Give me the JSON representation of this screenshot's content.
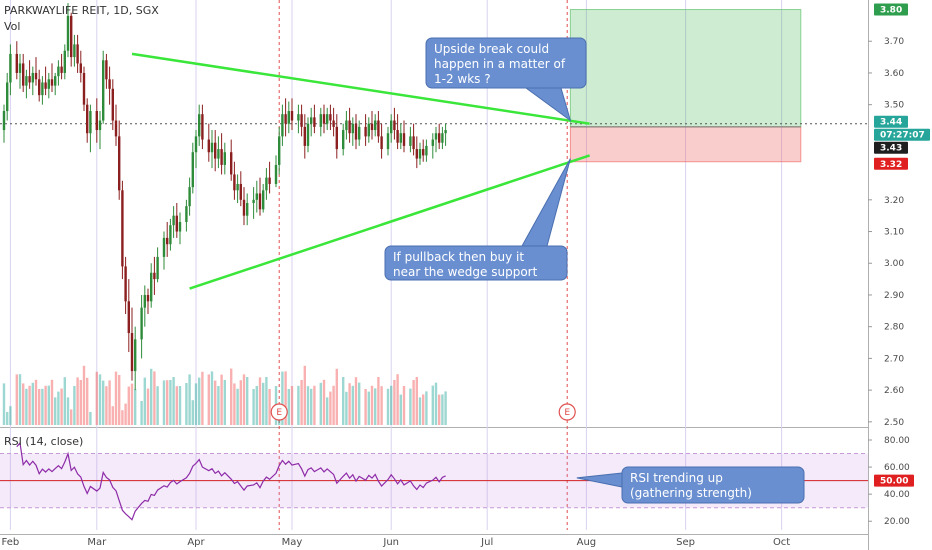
{
  "header": {
    "symbol": "PARKWAYLIFE REIT, 1D, SGX",
    "volume_label": "Vol",
    "rsi_label": "RSI (14, close)"
  },
  "price_axis": {
    "ticks": [
      "3.70",
      "3.60",
      "3.50",
      "3.20",
      "3.10",
      "3.00",
      "2.90",
      "2.80",
      "2.70",
      "2.60",
      "2.50"
    ],
    "tick_values": [
      3.7,
      3.6,
      3.5,
      3.2,
      3.1,
      3.0,
      2.9,
      2.8,
      2.7,
      2.6,
      2.5
    ],
    "range": [
      2.49,
      3.83
    ]
  },
  "rsi_axis": {
    "ticks": [
      "80.00",
      "60.00",
      "40.00",
      "20.00"
    ],
    "tick_values": [
      80,
      60,
      40,
      20
    ],
    "range": [
      15,
      80
    ],
    "upper_band": 70,
    "lower_band": 30
  },
  "months": [
    {
      "label": "Feb",
      "day": 2
    },
    {
      "label": "Mar",
      "day": 29
    },
    {
      "label": "Apr",
      "day": 60
    },
    {
      "label": "May",
      "day": 90
    },
    {
      "label": "Jun",
      "day": 121
    },
    {
      "label": "Jul",
      "day": 151
    },
    {
      "label": "Aug",
      "day": 182
    },
    {
      "label": "Sep",
      "day": 213
    },
    {
      "label": "Oct",
      "day": 243
    }
  ],
  "tags": {
    "target": {
      "text": "3.80",
      "value": 3.8,
      "color": "#2e9e4e"
    },
    "last": {
      "text": "3.44",
      "value": 3.44,
      "color": "#26a69a"
    },
    "countdown": {
      "text": "07:27:07",
      "color": "#26a69a"
    },
    "close": {
      "text": "3.43",
      "value": 3.43,
      "color": "#1e1e1e"
    },
    "stop": {
      "text": "3.32",
      "value": 3.32,
      "color": "#e02020"
    },
    "rsi": {
      "text": "50.00",
      "value": 50,
      "color": "#e02020"
    }
  },
  "position": {
    "entry": 3.43,
    "target": 3.8,
    "stop": 3.32,
    "start_day": 177,
    "end_day": 249
  },
  "wedge": {
    "upper": {
      "from": {
        "day": 40,
        "price": 3.66
      },
      "to": {
        "day": 183,
        "price": 3.44
      }
    },
    "lower": {
      "from": {
        "day": 58,
        "price": 2.92
      },
      "to": {
        "day": 183,
        "price": 3.34
      }
    },
    "color": "#39e639"
  },
  "events": [
    {
      "day": 86,
      "label": "E"
    },
    {
      "day": 176,
      "label": "E"
    }
  ],
  "earnings_lines": [
    86,
    176
  ],
  "annotations": [
    {
      "name": "upside-break-note",
      "lines": [
        "Upside break could",
        "happen in a matter of",
        "1-2 wks ?"
      ],
      "pointer": {
        "day": 177,
        "price": 3.45
      }
    },
    {
      "name": "pullback-note",
      "lines": [
        "If pullback then buy it",
        "near the wedge support"
      ],
      "pointer": {
        "day": 177,
        "price": 3.33
      }
    },
    {
      "name": "rsi-note",
      "lines": [
        "RSI trending up",
        "(gathering strength)"
      ],
      "pointer": {
        "day": 179,
        "rsi": 52
      }
    }
  ],
  "chart_data": {
    "type": "candlestick",
    "title": "PARKWAYLIFE REIT, 1D, SGX",
    "ylim": [
      2.49,
      3.83
    ],
    "candles": [
      {
        "d": 0,
        "o": 3.42,
        "h": 3.5,
        "l": 3.38,
        "c": 3.48
      },
      {
        "d": 1,
        "o": 3.48,
        "h": 3.6,
        "l": 3.45,
        "c": 3.57
      },
      {
        "d": 2,
        "o": 3.57,
        "h": 3.69,
        "l": 3.53,
        "c": 3.66
      },
      {
        "d": 4,
        "o": 3.66,
        "h": 3.7,
        "l": 3.58,
        "c": 3.6
      },
      {
        "d": 5,
        "o": 3.6,
        "h": 3.66,
        "l": 3.55,
        "c": 3.63
      },
      {
        "d": 6,
        "o": 3.63,
        "h": 3.66,
        "l": 3.54,
        "c": 3.56
      },
      {
        "d": 7,
        "o": 3.56,
        "h": 3.61,
        "l": 3.52,
        "c": 3.59
      },
      {
        "d": 8,
        "o": 3.59,
        "h": 3.64,
        "l": 3.55,
        "c": 3.57
      },
      {
        "d": 9,
        "o": 3.57,
        "h": 3.62,
        "l": 3.53,
        "c": 3.6
      },
      {
        "d": 10,
        "o": 3.6,
        "h": 3.65,
        "l": 3.56,
        "c": 3.58
      },
      {
        "d": 11,
        "o": 3.58,
        "h": 3.61,
        "l": 3.51,
        "c": 3.53
      },
      {
        "d": 12,
        "o": 3.53,
        "h": 3.59,
        "l": 3.5,
        "c": 3.57
      },
      {
        "d": 13,
        "o": 3.57,
        "h": 3.62,
        "l": 3.53,
        "c": 3.55
      },
      {
        "d": 14,
        "o": 3.55,
        "h": 3.6,
        "l": 3.52,
        "c": 3.58
      },
      {
        "d": 15,
        "o": 3.58,
        "h": 3.63,
        "l": 3.54,
        "c": 3.56
      },
      {
        "d": 16,
        "o": 3.56,
        "h": 3.6,
        "l": 3.53,
        "c": 3.59
      },
      {
        "d": 17,
        "o": 3.59,
        "h": 3.64,
        "l": 3.56,
        "c": 3.62
      },
      {
        "d": 18,
        "o": 3.62,
        "h": 3.66,
        "l": 3.58,
        "c": 3.6
      },
      {
        "d": 19,
        "o": 3.6,
        "h": 3.69,
        "l": 3.58,
        "c": 3.67
      },
      {
        "d": 20,
        "o": 3.67,
        "h": 3.82,
        "l": 3.65,
        "c": 3.78
      },
      {
        "d": 21,
        "o": 3.78,
        "h": 3.79,
        "l": 3.62,
        "c": 3.65
      },
      {
        "d": 22,
        "o": 3.65,
        "h": 3.72,
        "l": 3.62,
        "c": 3.69
      },
      {
        "d": 23,
        "o": 3.69,
        "h": 3.72,
        "l": 3.6,
        "c": 3.63
      },
      {
        "d": 24,
        "o": 3.63,
        "h": 3.67,
        "l": 3.57,
        "c": 3.6
      },
      {
        "d": 25,
        "o": 3.6,
        "h": 3.62,
        "l": 3.48,
        "c": 3.5
      },
      {
        "d": 26,
        "o": 3.5,
        "h": 3.52,
        "l": 3.38,
        "c": 3.41
      },
      {
        "d": 27,
        "o": 3.41,
        "h": 3.5,
        "l": 3.35,
        "c": 3.48
      },
      {
        "d": 29,
        "o": 3.48,
        "h": 3.52,
        "l": 3.38,
        "c": 3.42
      },
      {
        "d": 30,
        "o": 3.42,
        "h": 3.48,
        "l": 3.36,
        "c": 3.45
      },
      {
        "d": 31,
        "o": 3.45,
        "h": 3.67,
        "l": 3.44,
        "c": 3.64
      },
      {
        "d": 32,
        "o": 3.64,
        "h": 3.66,
        "l": 3.55,
        "c": 3.58
      },
      {
        "d": 33,
        "o": 3.58,
        "h": 3.62,
        "l": 3.5,
        "c": 3.55
      },
      {
        "d": 34,
        "o": 3.55,
        "h": 3.58,
        "l": 3.42,
        "c": 3.45
      },
      {
        "d": 35,
        "o": 3.45,
        "h": 3.5,
        "l": 3.37,
        "c": 3.4
      },
      {
        "d": 36,
        "o": 3.4,
        "h": 3.45,
        "l": 3.2,
        "c": 3.23
      },
      {
        "d": 37,
        "o": 3.23,
        "h": 3.26,
        "l": 2.95,
        "c": 2.99
      },
      {
        "d": 38,
        "o": 2.99,
        "h": 3.02,
        "l": 2.84,
        "c": 2.88
      },
      {
        "d": 39,
        "o": 2.88,
        "h": 2.95,
        "l": 2.72,
        "c": 2.78
      },
      {
        "d": 40,
        "o": 2.78,
        "h": 2.86,
        "l": 2.63,
        "c": 2.66
      },
      {
        "d": 41,
        "o": 2.66,
        "h": 2.8,
        "l": 2.6,
        "c": 2.76
      },
      {
        "d": 43,
        "o": 2.76,
        "h": 2.9,
        "l": 2.7,
        "c": 2.86
      },
      {
        "d": 44,
        "o": 2.86,
        "h": 2.93,
        "l": 2.8,
        "c": 2.9
      },
      {
        "d": 45,
        "o": 2.9,
        "h": 2.92,
        "l": 2.84,
        "c": 2.88
      },
      {
        "d": 46,
        "o": 2.88,
        "h": 3.0,
        "l": 2.86,
        "c": 2.97
      },
      {
        "d": 47,
        "o": 2.97,
        "h": 3.02,
        "l": 2.9,
        "c": 2.95
      },
      {
        "d": 48,
        "o": 2.95,
        "h": 3.05,
        "l": 2.94,
        "c": 3.02
      },
      {
        "d": 50,
        "o": 3.02,
        "h": 3.1,
        "l": 2.98,
        "c": 3.08
      },
      {
        "d": 51,
        "o": 3.08,
        "h": 3.13,
        "l": 3.02,
        "c": 3.06
      },
      {
        "d": 52,
        "o": 3.06,
        "h": 3.14,
        "l": 3.04,
        "c": 3.12
      },
      {
        "d": 53,
        "o": 3.12,
        "h": 3.18,
        "l": 3.08,
        "c": 3.15
      },
      {
        "d": 54,
        "o": 3.15,
        "h": 3.19,
        "l": 3.08,
        "c": 3.1
      },
      {
        "d": 55,
        "o": 3.1,
        "h": 3.16,
        "l": 3.06,
        "c": 3.13
      },
      {
        "d": 57,
        "o": 3.13,
        "h": 3.2,
        "l": 3.1,
        "c": 3.18
      },
      {
        "d": 58,
        "o": 3.18,
        "h": 3.27,
        "l": 3.15,
        "c": 3.24
      },
      {
        "d": 59,
        "o": 3.24,
        "h": 3.38,
        "l": 3.22,
        "c": 3.35
      },
      {
        "d": 60,
        "o": 3.35,
        "h": 3.42,
        "l": 3.3,
        "c": 3.4
      },
      {
        "d": 61,
        "o": 3.4,
        "h": 3.5,
        "l": 3.37,
        "c": 3.47
      },
      {
        "d": 62,
        "o": 3.47,
        "h": 3.5,
        "l": 3.36,
        "c": 3.39
      },
      {
        "d": 64,
        "o": 3.39,
        "h": 3.44,
        "l": 3.32,
        "c": 3.35
      },
      {
        "d": 65,
        "o": 3.35,
        "h": 3.42,
        "l": 3.3,
        "c": 3.38
      },
      {
        "d": 66,
        "o": 3.38,
        "h": 3.42,
        "l": 3.29,
        "c": 3.33
      },
      {
        "d": 67,
        "o": 3.33,
        "h": 3.4,
        "l": 3.3,
        "c": 3.36
      },
      {
        "d": 68,
        "o": 3.36,
        "h": 3.41,
        "l": 3.28,
        "c": 3.31
      },
      {
        "d": 69,
        "o": 3.31,
        "h": 3.38,
        "l": 3.28,
        "c": 3.35
      },
      {
        "d": 71,
        "o": 3.35,
        "h": 3.39,
        "l": 3.26,
        "c": 3.28
      },
      {
        "d": 72,
        "o": 3.28,
        "h": 3.32,
        "l": 3.2,
        "c": 3.23
      },
      {
        "d": 73,
        "o": 3.23,
        "h": 3.28,
        "l": 3.19,
        "c": 3.25
      },
      {
        "d": 74,
        "o": 3.25,
        "h": 3.29,
        "l": 3.18,
        "c": 3.2
      },
      {
        "d": 75,
        "o": 3.2,
        "h": 3.24,
        "l": 3.12,
        "c": 3.15
      },
      {
        "d": 76,
        "o": 3.15,
        "h": 3.22,
        "l": 3.12,
        "c": 3.19
      },
      {
        "d": 78,
        "o": 3.19,
        "h": 3.24,
        "l": 3.14,
        "c": 3.2
      },
      {
        "d": 79,
        "o": 3.2,
        "h": 3.26,
        "l": 3.16,
        "c": 3.22
      },
      {
        "d": 80,
        "o": 3.22,
        "h": 3.27,
        "l": 3.15,
        "c": 3.17
      },
      {
        "d": 81,
        "o": 3.17,
        "h": 3.25,
        "l": 3.16,
        "c": 3.23
      },
      {
        "d": 82,
        "o": 3.23,
        "h": 3.3,
        "l": 3.2,
        "c": 3.27
      },
      {
        "d": 83,
        "o": 3.27,
        "h": 3.32,
        "l": 3.22,
        "c": 3.25
      },
      {
        "d": 85,
        "o": 3.25,
        "h": 3.34,
        "l": 3.24,
        "c": 3.31
      },
      {
        "d": 86,
        "o": 3.31,
        "h": 3.43,
        "l": 3.28,
        "c": 3.4
      },
      {
        "d": 87,
        "o": 3.4,
        "h": 3.5,
        "l": 3.37,
        "c": 3.47
      },
      {
        "d": 88,
        "o": 3.47,
        "h": 3.52,
        "l": 3.4,
        "c": 3.44
      },
      {
        "d": 89,
        "o": 3.44,
        "h": 3.51,
        "l": 3.41,
        "c": 3.48
      },
      {
        "d": 90,
        "o": 3.48,
        "h": 3.52,
        "l": 3.42,
        "c": 3.45
      },
      {
        "d": 92,
        "o": 3.45,
        "h": 3.5,
        "l": 3.41,
        "c": 3.47
      },
      {
        "d": 93,
        "o": 3.47,
        "h": 3.5,
        "l": 3.4,
        "c": 3.43
      },
      {
        "d": 94,
        "o": 3.43,
        "h": 3.47,
        "l": 3.33,
        "c": 3.37
      },
      {
        "d": 95,
        "o": 3.37,
        "h": 3.46,
        "l": 3.35,
        "c": 3.44
      },
      {
        "d": 96,
        "o": 3.44,
        "h": 3.49,
        "l": 3.4,
        "c": 3.46
      },
      {
        "d": 97,
        "o": 3.46,
        "h": 3.5,
        "l": 3.41,
        "c": 3.43
      },
      {
        "d": 99,
        "o": 3.43,
        "h": 3.49,
        "l": 3.4,
        "c": 3.47
      },
      {
        "d": 100,
        "o": 3.47,
        "h": 3.5,
        "l": 3.41,
        "c": 3.44
      },
      {
        "d": 101,
        "o": 3.44,
        "h": 3.49,
        "l": 3.42,
        "c": 3.47
      },
      {
        "d": 102,
        "o": 3.47,
        "h": 3.5,
        "l": 3.42,
        "c": 3.45
      },
      {
        "d": 103,
        "o": 3.45,
        "h": 3.49,
        "l": 3.4,
        "c": 3.43
      },
      {
        "d": 104,
        "o": 3.43,
        "h": 3.47,
        "l": 3.33,
        "c": 3.36
      },
      {
        "d": 106,
        "o": 3.36,
        "h": 3.44,
        "l": 3.34,
        "c": 3.42
      },
      {
        "d": 107,
        "o": 3.42,
        "h": 3.48,
        "l": 3.39,
        "c": 3.45
      },
      {
        "d": 108,
        "o": 3.45,
        "h": 3.49,
        "l": 3.38,
        "c": 3.41
      },
      {
        "d": 109,
        "o": 3.41,
        "h": 3.46,
        "l": 3.37,
        "c": 3.44
      },
      {
        "d": 110,
        "o": 3.44,
        "h": 3.47,
        "l": 3.36,
        "c": 3.39
      },
      {
        "d": 111,
        "o": 3.39,
        "h": 3.45,
        "l": 3.37,
        "c": 3.43
      },
      {
        "d": 113,
        "o": 3.43,
        "h": 3.47,
        "l": 3.37,
        "c": 3.4
      },
      {
        "d": 114,
        "o": 3.4,
        "h": 3.46,
        "l": 3.38,
        "c": 3.44
      },
      {
        "d": 115,
        "o": 3.44,
        "h": 3.48,
        "l": 3.39,
        "c": 3.42
      },
      {
        "d": 116,
        "o": 3.42,
        "h": 3.47,
        "l": 3.4,
        "c": 3.45
      },
      {
        "d": 117,
        "o": 3.45,
        "h": 3.48,
        "l": 3.38,
        "c": 3.4
      },
      {
        "d": 118,
        "o": 3.4,
        "h": 3.44,
        "l": 3.33,
        "c": 3.36
      },
      {
        "d": 120,
        "o": 3.36,
        "h": 3.43,
        "l": 3.34,
        "c": 3.41
      },
      {
        "d": 121,
        "o": 3.41,
        "h": 3.47,
        "l": 3.38,
        "c": 3.45
      },
      {
        "d": 122,
        "o": 3.45,
        "h": 3.49,
        "l": 3.39,
        "c": 3.42
      },
      {
        "d": 123,
        "o": 3.42,
        "h": 3.47,
        "l": 3.36,
        "c": 3.38
      },
      {
        "d": 124,
        "o": 3.38,
        "h": 3.44,
        "l": 3.36,
        "c": 3.41
      },
      {
        "d": 125,
        "o": 3.41,
        "h": 3.45,
        "l": 3.35,
        "c": 3.37
      },
      {
        "d": 127,
        "o": 3.37,
        "h": 3.43,
        "l": 3.35,
        "c": 3.4
      },
      {
        "d": 128,
        "o": 3.4,
        "h": 3.44,
        "l": 3.34,
        "c": 3.36
      },
      {
        "d": 129,
        "o": 3.36,
        "h": 3.4,
        "l": 3.3,
        "c": 3.33
      },
      {
        "d": 130,
        "o": 3.33,
        "h": 3.38,
        "l": 3.31,
        "c": 3.36
      },
      {
        "d": 131,
        "o": 3.36,
        "h": 3.39,
        "l": 3.32,
        "c": 3.34
      },
      {
        "d": 132,
        "o": 3.34,
        "h": 3.39,
        "l": 3.32,
        "c": 3.37
      },
      {
        "d": 134,
        "o": 3.37,
        "h": 3.41,
        "l": 3.33,
        "c": 3.39
      },
      {
        "d": 135,
        "o": 3.39,
        "h": 3.43,
        "l": 3.35,
        "c": 3.41
      },
      {
        "d": 136,
        "o": 3.41,
        "h": 3.44,
        "l": 3.36,
        "c": 3.38
      },
      {
        "d": 137,
        "o": 3.38,
        "h": 3.43,
        "l": 3.36,
        "c": 3.41
      },
      {
        "d": 138,
        "o": 3.41,
        "h": 3.44,
        "l": 3.37,
        "c": 3.42
      }
    ]
  }
}
